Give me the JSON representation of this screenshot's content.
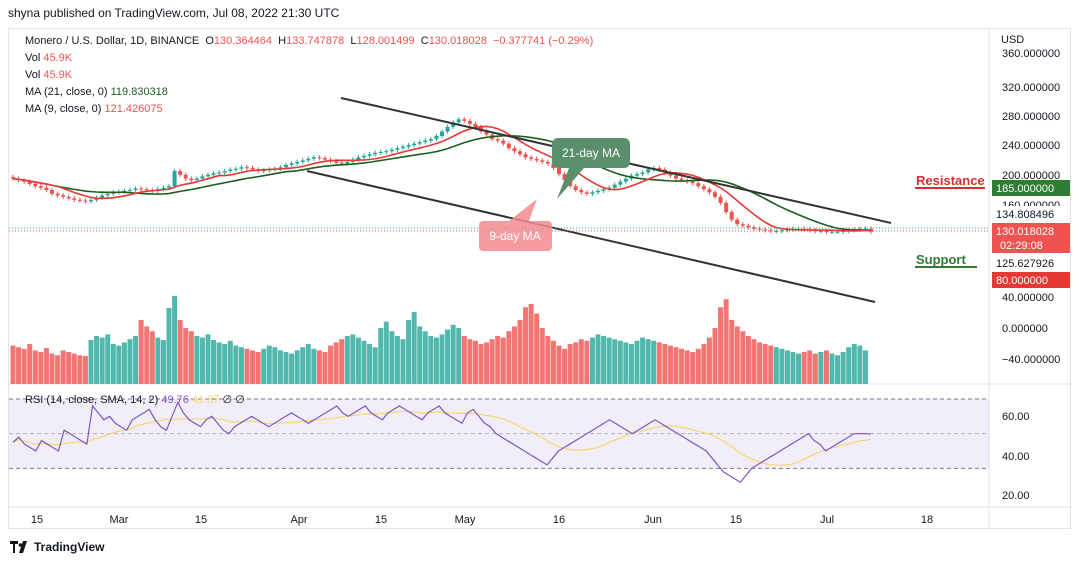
{
  "header": {
    "published": "shyna published on TradingView.com, Jul 08, 2022 21:30 UTC"
  },
  "legend": {
    "symbol": "Monero / U.S. Dollar, 1D, BINANCE",
    "o_label": "O",
    "o_val": "130.364464",
    "h_label": "H",
    "h_val": "133.747878",
    "l_label": "L",
    "l_val": "128.001499",
    "c_label": "C",
    "c_val": "130.018028",
    "change": "−0.377741 (−0.29%)",
    "vol1_label": "Vol",
    "vol1_val": "45.9K",
    "vol2_label": "Vol",
    "vol2_val": "45.9K",
    "ma21_label": "MA (21, close, 0)",
    "ma21_val": "119.830318",
    "ma9_label": "MA (9, close, 0)",
    "ma9_val": "121.426075",
    "rsi_label": "RSI (14, close, SMA, 14, 2)",
    "rsi_val": "49.76",
    "rsi_sma": "41.37",
    "rsi_na1": "∅",
    "rsi_na2": "∅"
  },
  "axis": {
    "currency": "USD",
    "price_ticks": [
      "360.000000",
      "320.000000",
      "280.000000",
      "240.000000",
      "200.000000",
      "160.000000",
      "40.000000",
      "0.000000",
      "−40.000000"
    ],
    "rsi_ticks": [
      "60.00",
      "40.00",
      "20.00"
    ],
    "x_ticks": [
      "15",
      "Mar",
      "15",
      "Apr",
      "15",
      "May",
      "16",
      "Jun",
      "15",
      "Jul",
      "18"
    ]
  },
  "price_tags": {
    "resistance": "185.000000",
    "upper": "134.808496",
    "current": "130.018028",
    "countdown": "02:29:08",
    "lower": "125.627926",
    "support": "80.000000"
  },
  "annotations": {
    "resistance": "Resistance",
    "support": "Support",
    "ma21": "21-day MA",
    "ma9": "9-day MA"
  },
  "footer": {
    "brand": "TradingView"
  },
  "colors": {
    "up": "#26a69a",
    "down": "#ef5350",
    "ma21": "#1b5e20",
    "ma9": "#e53935",
    "rsi": "#7e57c2",
    "rsi_sma": "#f5d76e",
    "resistance": "#d32f2f",
    "support": "#2e7d32"
  },
  "chart_data": {
    "type": "candlestick",
    "series_close": [
      200,
      198,
      196,
      193,
      190,
      188,
      185,
      180,
      178,
      176,
      174,
      172,
      171,
      170,
      172,
      175,
      178,
      180,
      182,
      183,
      184,
      185,
      187,
      186,
      185,
      184,
      186,
      188,
      190,
      210,
      205,
      200,
      198,
      200,
      203,
      205,
      207,
      208,
      210,
      212,
      213,
      215,
      214,
      212,
      210,
      211,
      212,
      213,
      215,
      218,
      220,
      222,
      224,
      226,
      228,
      227,
      225,
      223,
      221,
      220,
      222,
      225,
      228,
      230,
      232,
      234,
      235,
      236,
      238,
      240,
      242,
      244,
      246,
      248,
      250,
      252,
      256,
      262,
      268,
      274,
      278,
      276,
      272,
      268,
      262,
      258,
      252,
      250,
      246,
      240,
      236,
      232,
      228,
      226,
      224,
      222,
      220,
      214,
      206,
      198,
      190,
      185,
      182,
      180,
      182,
      184,
      186,
      188,
      192,
      196,
      200,
      204,
      206,
      208,
      212,
      214,
      212,
      208,
      204,
      200,
      198,
      196,
      194,
      190,
      186,
      182,
      176,
      168,
      156,
      146,
      140,
      138,
      136,
      134,
      133,
      132,
      131,
      131,
      132,
      133,
      134,
      134,
      133,
      132,
      131,
      131,
      130,
      130,
      130,
      131,
      132,
      133,
      134,
      134,
      130
    ],
    "volume": [
      48,
      46,
      44,
      50,
      42,
      40,
      45,
      38,
      36,
      42,
      40,
      38,
      36,
      35,
      55,
      60,
      58,
      62,
      50,
      48,
      52,
      56,
      60,
      80,
      72,
      66,
      58,
      55,
      95,
      110,
      80,
      70,
      66,
      60,
      58,
      62,
      55,
      52,
      50,
      54,
      48,
      46,
      44,
      42,
      40,
      44,
      48,
      46,
      42,
      40,
      38,
      42,
      46,
      50,
      44,
      42,
      40,
      48,
      52,
      56,
      60,
      62,
      58,
      54,
      50,
      46,
      70,
      78,
      66,
      60,
      56,
      80,
      90,
      72,
      66,
      60,
      58,
      62,
      68,
      74,
      70,
      60,
      56,
      54,
      50,
      52,
      56,
      60,
      58,
      66,
      72,
      80,
      96,
      100,
      88,
      70,
      60,
      54,
      48,
      44,
      50,
      52,
      56,
      54,
      58,
      62,
      60,
      58,
      56,
      54,
      52,
      50,
      54,
      58,
      56,
      54,
      52,
      50,
      48,
      46,
      44,
      42,
      40,
      44,
      50,
      58,
      70,
      96,
      106,
      80,
      72,
      66,
      60,
      56,
      52,
      50,
      48,
      46,
      44,
      42,
      40,
      38,
      40,
      42,
      38,
      40,
      42,
      38,
      36,
      40,
      46,
      50,
      48,
      42
    ],
    "rsi": [
      45,
      48,
      44,
      42,
      40,
      46,
      44,
      42,
      40,
      52,
      50,
      48,
      46,
      44,
      66,
      62,
      58,
      60,
      56,
      54,
      52,
      58,
      60,
      62,
      64,
      58,
      54,
      52,
      60,
      68,
      62,
      58,
      56,
      54,
      58,
      60,
      56,
      52,
      50,
      54,
      56,
      58,
      60,
      58,
      56,
      54,
      56,
      58,
      60,
      62,
      60,
      58,
      56,
      58,
      60,
      62,
      64,
      66,
      62,
      60,
      62,
      64,
      66,
      62,
      60,
      58,
      62,
      64,
      66,
      64,
      62,
      60,
      58,
      62,
      64,
      66,
      62,
      60,
      58,
      56,
      62,
      64,
      60,
      56,
      54,
      50,
      48,
      46,
      44,
      42,
      40,
      38,
      36,
      34,
      32,
      36,
      40,
      42,
      44,
      46,
      48,
      50,
      52,
      54,
      56,
      58,
      56,
      54,
      52,
      50,
      52,
      54,
      56,
      58,
      56,
      54,
      52,
      50,
      48,
      46,
      44,
      42,
      40,
      36,
      32,
      28,
      26,
      24,
      22,
      26,
      30,
      32,
      34,
      36,
      38,
      40,
      42,
      44,
      46,
      48,
      50,
      46,
      44,
      40,
      42,
      44,
      46,
      48,
      50,
      50,
      50,
      49.76
    ],
    "ma21": [],
    "ma9": [],
    "ylim": [
      0,
      380
    ]
  }
}
